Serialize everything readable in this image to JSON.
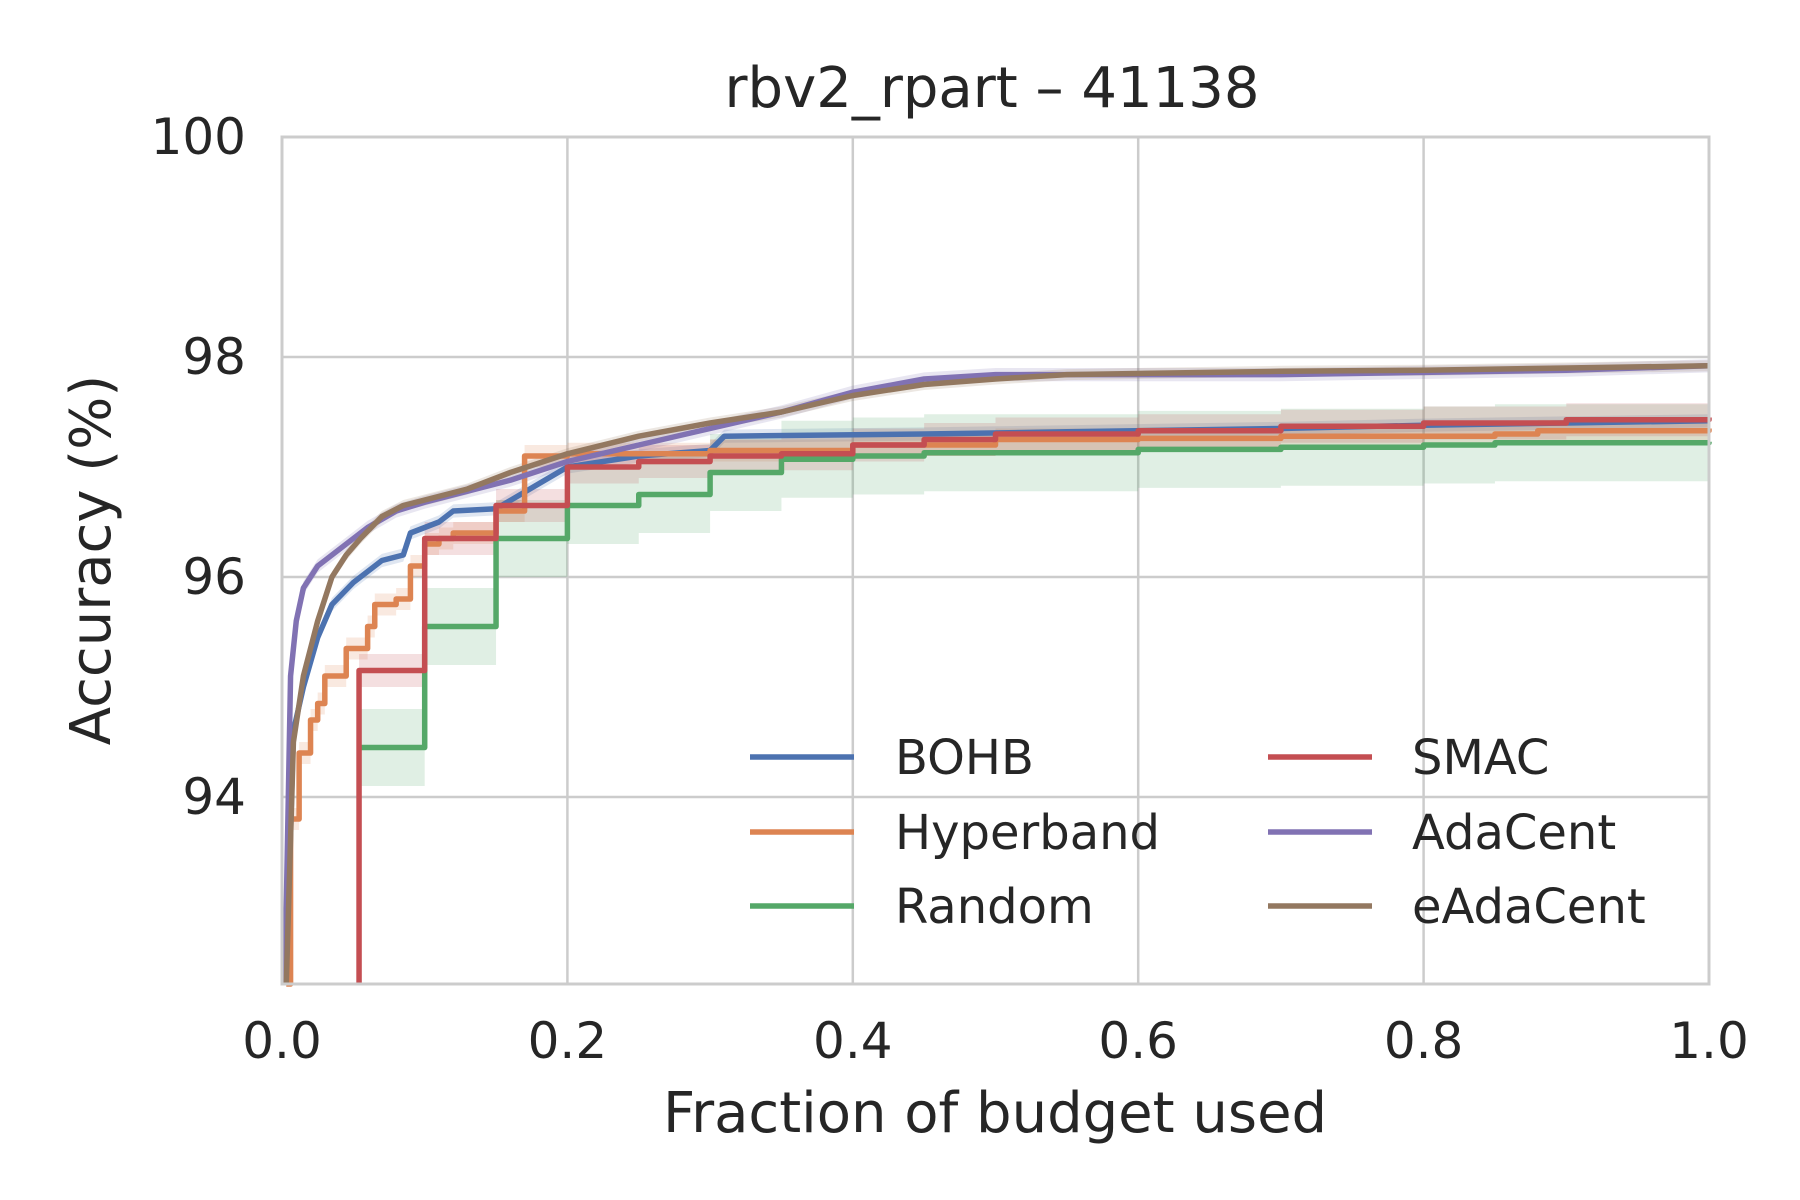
{
  "chart_data": {
    "type": "line",
    "title": "rbv2_rpart – 41138",
    "xlabel": "Fraction of budget used",
    "ylabel": "Accuracy (%)",
    "xlim": [
      0.0,
      1.0
    ],
    "ylim": [
      92.3,
      100
    ],
    "xticks": [
      0.0,
      0.2,
      0.4,
      0.6,
      0.8,
      1.0
    ],
    "xtick_labels": [
      "0.0",
      "0.2",
      "0.4",
      "0.6",
      "0.8",
      "1.0"
    ],
    "yticks": [
      94,
      96,
      98,
      100
    ],
    "ytick_labels": [
      "94",
      "96",
      "98",
      "100"
    ],
    "grid": true,
    "legend_position": "lower-right",
    "series": [
      {
        "name": "BOHB",
        "color": "#4c72b0",
        "step": false,
        "x": [
          0.003,
          0.008,
          0.015,
          0.025,
          0.035,
          0.05,
          0.07,
          0.085,
          0.09,
          0.1,
          0.11,
          0.12,
          0.15,
          0.2,
          0.25,
          0.3,
          0.31,
          0.45,
          0.55,
          0.7,
          0.8,
          0.9,
          1.0
        ],
        "y": [
          92.3,
          94.6,
          95.0,
          95.45,
          95.75,
          95.95,
          96.15,
          96.2,
          96.4,
          96.45,
          96.5,
          96.6,
          96.62,
          97.0,
          97.1,
          97.15,
          97.28,
          97.3,
          97.32,
          97.35,
          97.38,
          97.4,
          97.42
        ],
        "band": 0.06
      },
      {
        "name": "Hyperband",
        "color": "#dd8452",
        "step": true,
        "x": [
          0.003,
          0.006,
          0.012,
          0.02,
          0.025,
          0.03,
          0.045,
          0.06,
          0.065,
          0.08,
          0.09,
          0.1,
          0.11,
          0.12,
          0.15,
          0.17,
          0.2,
          0.3,
          0.4,
          0.5,
          0.6,
          0.7,
          0.85,
          0.88,
          1.0
        ],
        "y": [
          92.3,
          93.8,
          94.4,
          94.7,
          94.85,
          95.1,
          95.35,
          95.55,
          95.75,
          95.8,
          96.1,
          96.3,
          96.35,
          96.4,
          96.6,
          97.1,
          97.12,
          97.15,
          97.2,
          97.25,
          97.26,
          97.28,
          97.3,
          97.33,
          97.35
        ],
        "band": 0.1
      },
      {
        "name": "Random",
        "color": "#55a868",
        "step": true,
        "x": [
          0.054,
          0.09,
          0.1,
          0.14,
          0.15,
          0.2,
          0.25,
          0.3,
          0.35,
          0.4,
          0.45,
          0.6,
          0.7,
          0.8,
          0.85,
          1.0
        ],
        "y": [
          94.45,
          94.45,
          95.55,
          95.55,
          96.35,
          96.65,
          96.75,
          96.95,
          97.07,
          97.1,
          97.13,
          97.16,
          97.18,
          97.2,
          97.22,
          97.23
        ],
        "band": 0.35
      },
      {
        "name": "SMAC",
        "color": "#c44e52",
        "step": true,
        "x": [
          0.054,
          0.054,
          0.09,
          0.1,
          0.15,
          0.165,
          0.195,
          0.2,
          0.25,
          0.3,
          0.35,
          0.4,
          0.45,
          0.5,
          0.6,
          0.7,
          0.8,
          0.9,
          1.0
        ],
        "y": [
          92.3,
          95.15,
          95.15,
          96.35,
          96.65,
          96.65,
          96.65,
          97.0,
          97.05,
          97.1,
          97.12,
          97.2,
          97.25,
          97.3,
          97.33,
          97.37,
          97.4,
          97.43,
          97.45
        ],
        "band": 0.15
      },
      {
        "name": "AdaCent",
        "color": "#8172b3",
        "step": false,
        "x": [
          0.002,
          0.006,
          0.01,
          0.015,
          0.025,
          0.04,
          0.06,
          0.08,
          0.1,
          0.13,
          0.16,
          0.2,
          0.25,
          0.3,
          0.35,
          0.4,
          0.45,
          0.5,
          0.55,
          0.6,
          0.7,
          0.8,
          0.9,
          1.0
        ],
        "y": [
          92.3,
          95.1,
          95.6,
          95.9,
          96.1,
          96.25,
          96.45,
          96.6,
          96.68,
          96.78,
          96.88,
          97.05,
          97.2,
          97.35,
          97.5,
          97.68,
          97.8,
          97.84,
          97.84,
          97.84,
          97.84,
          97.86,
          97.88,
          97.92
        ],
        "band": 0.06
      },
      {
        "name": "eAdaCent",
        "color": "#937860",
        "step": false,
        "x": [
          0.003,
          0.008,
          0.015,
          0.025,
          0.035,
          0.045,
          0.055,
          0.07,
          0.085,
          0.1,
          0.13,
          0.16,
          0.2,
          0.25,
          0.3,
          0.35,
          0.4,
          0.45,
          0.5,
          0.55,
          0.6,
          0.7,
          0.8,
          0.9,
          1.0
        ],
        "y": [
          92.3,
          94.5,
          95.1,
          95.6,
          96.0,
          96.2,
          96.35,
          96.55,
          96.65,
          96.7,
          96.8,
          96.95,
          97.12,
          97.28,
          97.4,
          97.5,
          97.65,
          97.75,
          97.8,
          97.84,
          97.85,
          97.87,
          97.88,
          97.9,
          97.92
        ],
        "band": 0.05
      }
    ]
  }
}
